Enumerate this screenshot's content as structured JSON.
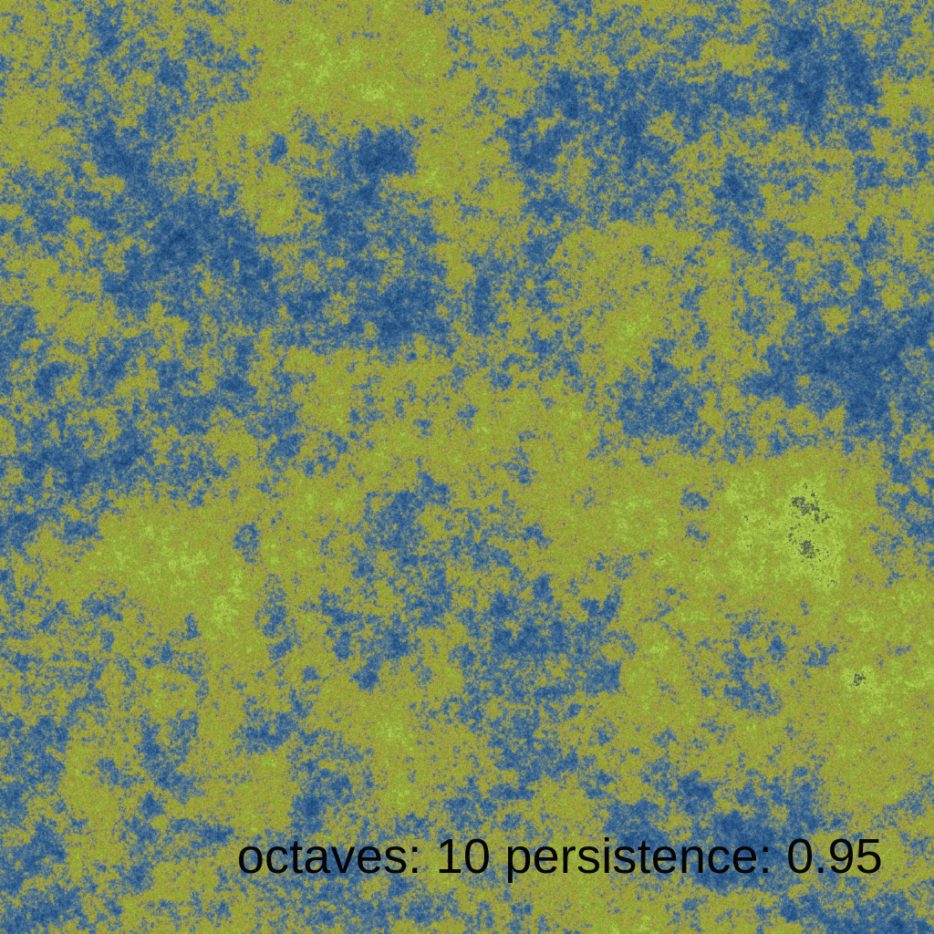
{
  "caption": {
    "octaves_label": "octaves:",
    "octaves_value": "10",
    "persistence_label": "persistence:",
    "persistence_value": "0.95"
  },
  "terrain": {
    "octaves": 10,
    "persistence": 0.95,
    "colors": {
      "deep_water": "#173b69",
      "water": "#2f5f8f",
      "shallow_water": "#5d7d92",
      "sand": "#a79d38",
      "grass": "#8ca63a",
      "bright_grass": "#b6d34f",
      "rock": "#3d4b3d",
      "snow": "#d8d8d8"
    }
  }
}
